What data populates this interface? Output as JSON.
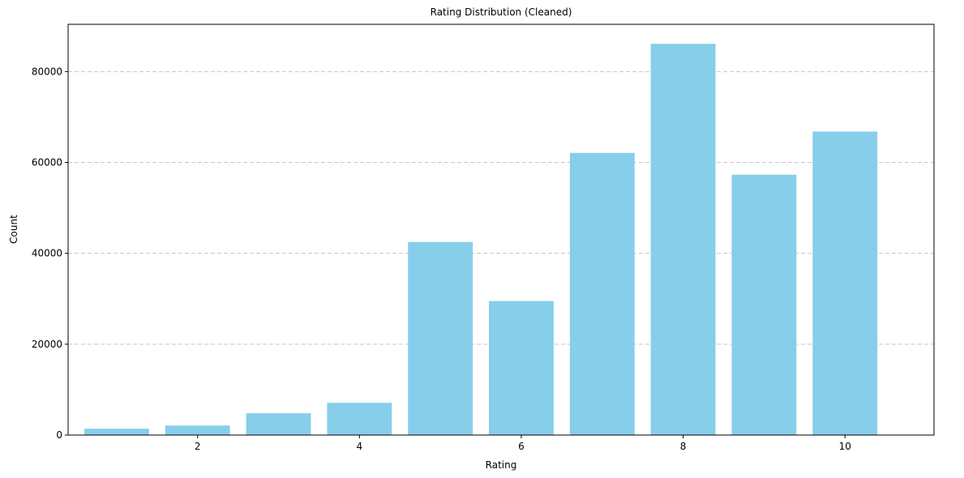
{
  "chart_data": {
    "type": "bar",
    "title": "Rating Distribution (Cleaned)",
    "xlabel": "Rating",
    "ylabel": "Count",
    "categories": [
      1,
      2,
      3,
      4,
      5,
      6,
      7,
      8,
      9,
      10
    ],
    "values": [
      1400,
      2100,
      4800,
      7100,
      42500,
      29500,
      62100,
      86100,
      57300,
      66800
    ],
    "xlim": [
      0.4,
      11.1
    ],
    "ylim": [
      0,
      90400
    ],
    "xticks": [
      2,
      4,
      6,
      8,
      10
    ],
    "xtick_labels": [
      "2",
      "4",
      "6",
      "8",
      "10"
    ],
    "yticks": [
      0,
      20000,
      40000,
      60000,
      80000
    ],
    "ytick_labels": [
      "0",
      "20000",
      "40000",
      "60000",
      "80000"
    ],
    "grid": "y-dashed",
    "bar_color": "#87CEEB",
    "grid_color": "#c8c8c8"
  }
}
